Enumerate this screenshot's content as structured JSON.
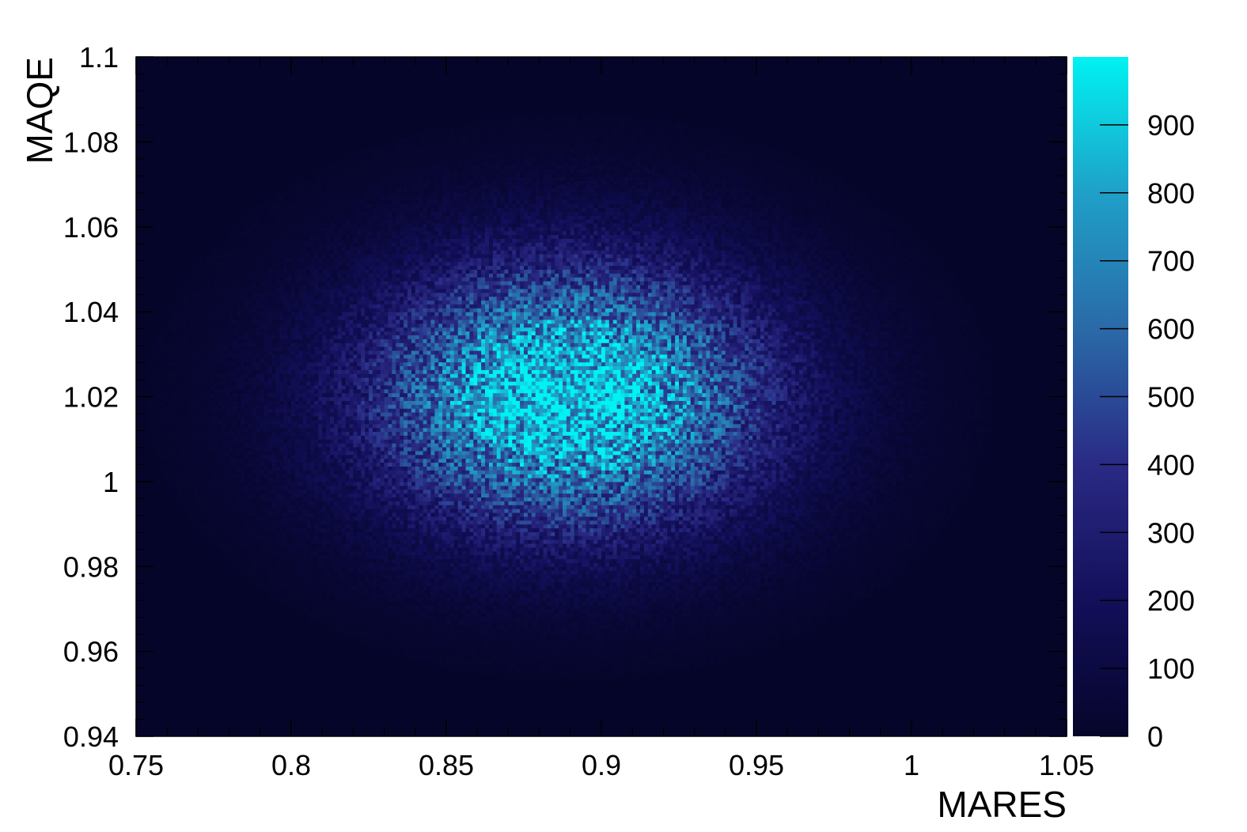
{
  "chart_data": {
    "type": "heatmap",
    "xlabel": "MARES",
    "ylabel": "MAQE",
    "xlim": [
      0.75,
      1.05
    ],
    "ylim": [
      0.94,
      1.1
    ],
    "x_ticks": [
      {
        "value": 0.75,
        "label": "0.75"
      },
      {
        "value": 0.8,
        "label": "0.8"
      },
      {
        "value": 0.85,
        "label": "0.85"
      },
      {
        "value": 0.9,
        "label": "0.9"
      },
      {
        "value": 0.95,
        "label": "0.95"
      },
      {
        "value": 1.0,
        "label": "1"
      },
      {
        "value": 1.05,
        "label": "1.05"
      }
    ],
    "y_ticks": [
      {
        "value": 0.94,
        "label": "0.94"
      },
      {
        "value": 0.96,
        "label": "0.96"
      },
      {
        "value": 0.98,
        "label": "0.98"
      },
      {
        "value": 1.0,
        "label": "1"
      },
      {
        "value": 1.02,
        "label": "1.02"
      },
      {
        "value": 1.04,
        "label": "1.04"
      },
      {
        "value": 1.06,
        "label": "1.06"
      },
      {
        "value": 1.08,
        "label": "1.08"
      },
      {
        "value": 1.1,
        "label": "1.1"
      }
    ],
    "colorbar": {
      "range": [
        0,
        1000
      ],
      "ticks": [
        {
          "value": 0,
          "label": "0"
        },
        {
          "value": 100,
          "label": "100"
        },
        {
          "value": 200,
          "label": "200"
        },
        {
          "value": 300,
          "label": "300"
        },
        {
          "value": 400,
          "label": "400"
        },
        {
          "value": 500,
          "label": "500"
        },
        {
          "value": 600,
          "label": "600"
        },
        {
          "value": 700,
          "label": "700"
        },
        {
          "value": 800,
          "label": "800"
        },
        {
          "value": 900,
          "label": "900"
        }
      ]
    },
    "colormap": [
      "#05052a",
      "#130f5a",
      "#2a2a85",
      "#2a6aa8",
      "#1fa0c8",
      "#00f2f2"
    ],
    "distribution": {
      "center_x": 0.89,
      "center_y": 1.02,
      "sigma_x": 0.045,
      "sigma_y": 0.022,
      "peak_count": 980
    },
    "grid": false
  }
}
